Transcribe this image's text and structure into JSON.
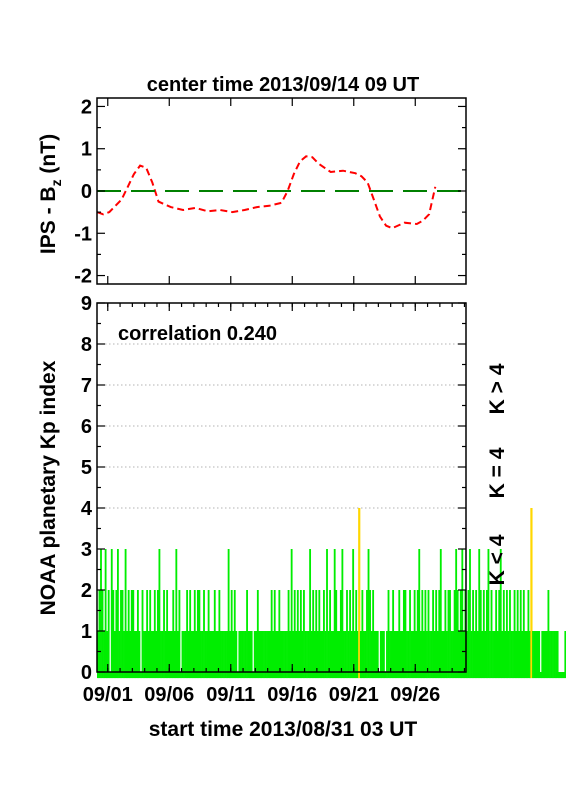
{
  "chart_data": [
    {
      "type": "line",
      "title": "center time 2013/09/14 09 UT",
      "ylabel_main": "IPS - B",
      "ylabel_sub": "z",
      "ylabel_unit": " (nT)",
      "ylim": [
        -2.2,
        2.2
      ],
      "yticks": [
        "-2",
        "-1",
        "0",
        "1",
        "2"
      ],
      "ytick_values": [
        -2,
        -1,
        0,
        1,
        2
      ],
      "xlim": [
        0,
        30
      ],
      "series": [
        {
          "style": "dashed",
          "color": "#ff0000",
          "x": [
            0,
            0.5,
            1,
            1.5,
            2,
            2.5,
            3,
            3.5,
            4,
            4.5,
            5,
            6,
            7,
            8,
            9,
            10,
            11,
            12,
            13,
            14,
            15,
            15.5,
            16,
            16.5,
            17,
            17.5,
            18,
            18.5,
            19,
            20,
            21,
            21.5,
            22,
            22.5,
            23,
            23.5,
            24,
            25,
            26,
            26.5,
            27,
            27.5
          ],
          "y": [
            -0.5,
            -0.55,
            -0.5,
            -0.35,
            -0.2,
            0.1,
            0.4,
            0.6,
            0.55,
            0.2,
            -0.25,
            -0.38,
            -0.45,
            -0.4,
            -0.48,
            -0.45,
            -0.5,
            -0.45,
            -0.38,
            -0.35,
            -0.28,
            0.0,
            0.4,
            0.7,
            0.82,
            0.8,
            0.65,
            0.55,
            0.45,
            0.48,
            0.42,
            0.35,
            0.2,
            -0.2,
            -0.6,
            -0.82,
            -0.88,
            -0.75,
            -0.78,
            -0.7,
            -0.55,
            0.1
          ]
        },
        {
          "style": "long-dash",
          "color": "#008000",
          "x": [
            0,
            30
          ],
          "y": [
            0,
            0
          ]
        }
      ]
    },
    {
      "type": "bar",
      "annotation": "correlation 0.240",
      "ylabel": "NOAA planetary Kp index",
      "xlabel": "start time 2013/08/31 03 UT",
      "ylim": [
        0,
        9
      ],
      "yticks": [
        "0",
        "1",
        "2",
        "3",
        "4",
        "5",
        "6",
        "7",
        "8",
        "9"
      ],
      "ytick_values": [
        0,
        1,
        2,
        3,
        4,
        5,
        6,
        7,
        8,
        9
      ],
      "grid_y": [
        4,
        5,
        6,
        7,
        8
      ],
      "xlim": [
        0,
        30
      ],
      "xticks": [
        "09/01",
        "09/06",
        "09/11",
        "09/16",
        "09/21",
        "09/26"
      ],
      "xtick_values": [
        0.875,
        5.875,
        10.875,
        15.875,
        20.875,
        25.875
      ],
      "interval_days": 0.125,
      "kp": [
        1,
        2,
        3,
        2,
        1,
        3,
        1,
        2,
        0,
        3,
        2,
        1,
        2,
        3,
        1,
        2,
        2,
        1,
        3,
        1,
        2,
        1,
        2,
        2,
        1,
        1,
        2,
        1,
        0,
        2,
        1,
        1,
        2,
        1,
        2,
        1,
        1,
        2,
        1,
        2,
        3,
        1,
        1,
        2,
        1,
        2,
        1,
        1,
        1,
        2,
        1,
        3,
        1,
        2,
        0,
        1,
        1,
        1,
        2,
        1,
        2,
        1,
        1,
        2,
        1,
        2,
        2,
        1,
        1,
        2,
        1,
        1,
        2,
        1,
        1,
        1,
        2,
        1,
        1,
        2,
        1,
        1,
        1,
        1,
        1,
        3,
        1,
        2,
        1,
        2,
        1,
        0,
        1,
        1,
        1,
        1,
        1,
        2,
        1,
        1,
        1,
        0,
        1,
        1,
        2,
        1,
        1,
        1,
        1,
        1,
        1,
        1,
        1,
        2,
        1,
        2,
        1,
        1,
        2,
        1,
        1,
        1,
        1,
        1,
        2,
        1,
        3,
        1,
        2,
        1,
        2,
        1,
        2,
        1,
        2,
        1,
        1,
        1,
        3,
        1,
        2,
        1,
        2,
        1,
        2,
        1,
        1,
        2,
        1,
        3,
        1,
        2,
        1,
        1,
        3,
        2,
        1,
        1,
        2,
        3,
        1,
        1,
        2,
        1,
        2,
        1,
        3,
        1,
        2,
        1,
        4,
        1,
        2,
        1,
        1,
        2,
        3,
        2,
        1,
        2,
        1,
        1,
        1,
        0,
        1,
        1,
        1,
        0,
        1,
        2,
        1,
        1,
        2,
        1,
        1,
        1,
        2,
        1,
        1,
        2,
        2,
        1,
        1,
        2,
        1,
        1,
        2,
        1,
        2,
        3,
        1,
        2,
        1,
        2,
        1,
        2,
        1,
        1,
        2,
        1,
        2,
        1,
        2,
        3,
        1,
        1,
        2,
        1,
        2,
        2,
        1,
        1,
        2,
        3,
        2,
        1,
        2,
        3,
        1,
        2,
        1,
        2,
        3,
        1,
        2,
        1,
        2,
        1,
        3,
        2,
        1,
        2,
        1,
        2,
        3,
        1,
        2,
        1,
        1,
        2,
        1,
        2,
        3,
        1,
        2,
        1,
        2,
        1,
        2,
        1,
        1,
        2,
        1,
        2,
        1,
        2,
        1,
        2,
        1,
        1,
        2,
        1,
        4,
        1,
        1,
        1,
        1,
        1,
        0,
        1,
        1,
        1,
        1,
        2,
        1,
        1,
        1,
        1,
        1,
        1,
        0,
        0,
        0,
        0,
        1,
        0,
        0,
        0,
        0,
        1,
        0,
        0,
        1,
        1,
        0,
        0,
        0,
        0,
        0
      ],
      "side_labels": [
        {
          "text": "K < 4",
          "color": "#00ee00"
        },
        {
          "text": "K = 4",
          "color": "#ffd700"
        },
        {
          "text": "K > 4",
          "color": "#ff0000"
        }
      ],
      "colors": {
        "below4": "#00ee00",
        "equal4": "#ffd700",
        "above4": "#ff0000"
      }
    }
  ]
}
